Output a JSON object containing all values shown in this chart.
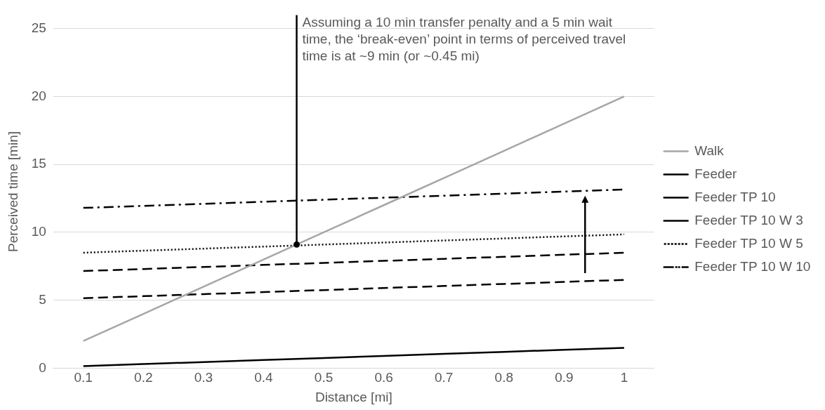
{
  "chart_data": {
    "type": "line",
    "xlabel": "Distance [mi]",
    "ylabel": "Perceived time [min]",
    "x": [
      0.1,
      0.2,
      0.3,
      0.4,
      0.5,
      0.6,
      0.7,
      0.8,
      0.9,
      1
    ],
    "xlim": [
      0.05,
      1.05
    ],
    "xticks": [
      0.1,
      0.2,
      0.3,
      0.4,
      0.5,
      0.6,
      0.7,
      0.8,
      0.9,
      1
    ],
    "ylim": [
      0,
      26
    ],
    "yticks": [
      0,
      5,
      10,
      15,
      20,
      25
    ],
    "grid": "y",
    "legend": "right",
    "marker": "none",
    "series": [
      {
        "name": "Walk",
        "color": "#a6a6a6",
        "line_style": "solid",
        "values": [
          2,
          4,
          6,
          8,
          10,
          12,
          14,
          16,
          18,
          20
        ]
      },
      {
        "name": "Feeder",
        "color": "#000000",
        "line_style": "solid",
        "values": [
          0.15,
          0.3,
          0.45,
          0.6,
          0.75,
          0.9,
          1.05,
          1.2,
          1.35,
          1.5
        ]
      },
      {
        "name": "Feeder TP 10",
        "color": "#000000",
        "line_style": "dashed",
        "values": [
          5.15,
          5.3,
          5.45,
          5.6,
          5.75,
          5.9,
          6.05,
          6.2,
          6.35,
          6.5
        ]
      },
      {
        "name": "Feeder TP 10 W 3",
        "color": "#000000",
        "line_style": "dashed",
        "values": [
          7.15,
          7.3,
          7.45,
          7.6,
          7.75,
          7.9,
          8.05,
          8.2,
          8.35,
          8.5
        ]
      },
      {
        "name": "Feeder TP 10 W 5",
        "color": "#000000",
        "line_style": "dotted",
        "values": [
          8.5,
          8.65,
          8.8,
          8.95,
          9.1,
          9.25,
          9.4,
          9.55,
          9.7,
          9.85
        ]
      },
      {
        "name": "Feeder TP 10 W 10",
        "color": "#000000",
        "line_style": "dashdot",
        "values": [
          11.8,
          11.95,
          12.1,
          12.25,
          12.4,
          12.55,
          12.7,
          12.85,
          13,
          13.15
        ]
      }
    ],
    "annotations": [
      {
        "text": "Assuming a 10 min transfer penalty and a 5 min wait time, the ‘break-even’ point in terms of perceived travel time is at ~9 min (or ~0.45 mi)",
        "x": 0.455,
        "y": 9.1
      }
    ]
  }
}
